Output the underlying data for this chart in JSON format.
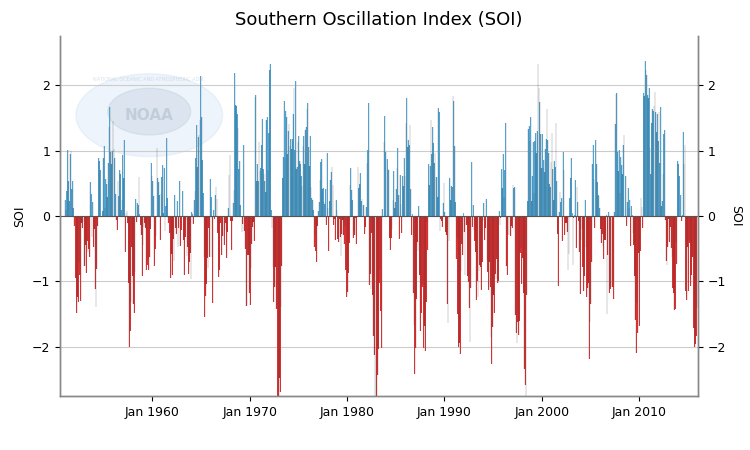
{
  "title": "Southern Oscillation Index (SOI)",
  "ylabel": "SOI",
  "xlim_start": 1950.5,
  "xlim_end": 2016.0,
  "ylim": [
    -2.75,
    2.75
  ],
  "yticks": [
    -2.0,
    -1.0,
    0.0,
    1.0,
    2.0
  ],
  "xtick_years": [
    1960,
    1970,
    1980,
    1990,
    2000,
    2010
  ],
  "positive_color": "#56B4E9",
  "negative_color": "#EE3333",
  "bar_edge_color": "#111111",
  "bg_color": "#FFFFFF",
  "grid_color": "#CCCCCC",
  "title_fontsize": 13,
  "label_fontsize": 9,
  "tick_fontsize": 9,
  "noaa_color": "#AACCDD",
  "noaa_alpha": 0.25
}
